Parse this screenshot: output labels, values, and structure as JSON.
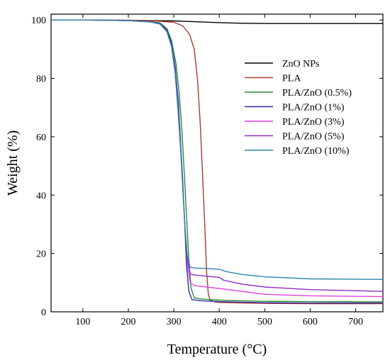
{
  "chart_data": {
    "type": "line",
    "xlabel": "Temperature (°C)",
    "ylabel": "Weight (%)",
    "xlim": [
      30,
      760
    ],
    "ylim": [
      0,
      102
    ],
    "xticks": [
      100,
      200,
      300,
      400,
      500,
      600,
      700
    ],
    "yticks": [
      0,
      20,
      40,
      60,
      80,
      100
    ],
    "grid": false,
    "legend_position": "right-middle",
    "series": [
      {
        "name": "ZnO NPs",
        "color": "#000000",
        "x": [
          30,
          100,
          200,
          300,
          350,
          400,
          450,
          500,
          600,
          700,
          760
        ],
        "y": [
          100,
          100,
          99.9,
          99.7,
          99.4,
          99.1,
          98.9,
          98.8,
          98.8,
          98.8,
          98.8
        ]
      },
      {
        "name": "PLA",
        "color": "#B03A2E",
        "x": [
          30,
          100,
          200,
          250,
          300,
          320,
          335,
          345,
          352,
          358,
          363,
          368,
          372,
          376,
          380,
          390,
          400,
          450,
          500,
          600,
          760
        ],
        "y": [
          100,
          100,
          99.9,
          99.8,
          99.2,
          98,
          95,
          90,
          80,
          65,
          48,
          30,
          14,
          6,
          4,
          3.4,
          3.2,
          3,
          2.9,
          2.8,
          2.8
        ]
      },
      {
        "name": "PLA/ZnO (0.5%)",
        "color": "#2E8B3A",
        "x": [
          30,
          100,
          200,
          250,
          270,
          285,
          295,
          305,
          312,
          318,
          323,
          328,
          333,
          338,
          345,
          360,
          400,
          450,
          500,
          600,
          760
        ],
        "y": [
          100,
          100,
          99.8,
          99.5,
          99,
          97,
          93,
          85,
          75,
          62,
          48,
          33,
          18,
          8,
          4.8,
          4.4,
          4,
          3.8,
          3.6,
          3.5,
          3.4
        ]
      },
      {
        "name": "PLA/ZnO (1%)",
        "color": "#2B2FA8",
        "x": [
          30,
          100,
          200,
          250,
          270,
          285,
          295,
          303,
          310,
          315,
          320,
          324,
          328,
          333,
          340,
          360,
          400,
          450,
          500,
          600,
          760
        ],
        "y": [
          100,
          100,
          99.8,
          99.4,
          98.8,
          96.5,
          92,
          84,
          72,
          58,
          44,
          30,
          16,
          7,
          4.2,
          3.8,
          3.5,
          3.3,
          3.1,
          3,
          3
        ]
      },
      {
        "name": "PLA/ZnO (3%)",
        "color": "#E040E0",
        "x": [
          30,
          100,
          200,
          250,
          270,
          285,
          295,
          303,
          309,
          315,
          320,
          325,
          330,
          336,
          345,
          360,
          400,
          450,
          500,
          600,
          760
        ],
        "y": [
          100,
          100,
          99.8,
          99.3,
          98.6,
          96,
          91,
          82,
          70,
          56,
          42,
          28,
          16,
          10,
          9,
          8.7,
          8,
          7,
          6,
          5.5,
          5.2
        ]
      },
      {
        "name": "PLA/ZnO (5%)",
        "color": "#8E2BC4",
        "x": [
          30,
          100,
          200,
          250,
          270,
          285,
          295,
          303,
          309,
          315,
          320,
          325,
          330,
          336,
          345,
          360,
          400,
          410,
          450,
          500,
          600,
          760
        ],
        "y": [
          100,
          100,
          99.8,
          99.3,
          98.6,
          96,
          91,
          82,
          70,
          56,
          42,
          28,
          18,
          13,
          12.6,
          12.4,
          11.8,
          10.8,
          9.5,
          8.5,
          7.6,
          7
        ]
      },
      {
        "name": "PLA/ZnO (10%)",
        "color": "#2E86AB",
        "x": [
          30,
          100,
          200,
          250,
          270,
          285,
          295,
          303,
          309,
          315,
          320,
          325,
          330,
          336,
          345,
          360,
          400,
          415,
          450,
          500,
          600,
          760
        ],
        "y": [
          100,
          100,
          99.8,
          99.3,
          98.6,
          96,
          91,
          82,
          70,
          56,
          42,
          28,
          19,
          15.3,
          15,
          14.9,
          14.6,
          13.8,
          12.8,
          12,
          11.3,
          11.1
        ]
      }
    ]
  }
}
